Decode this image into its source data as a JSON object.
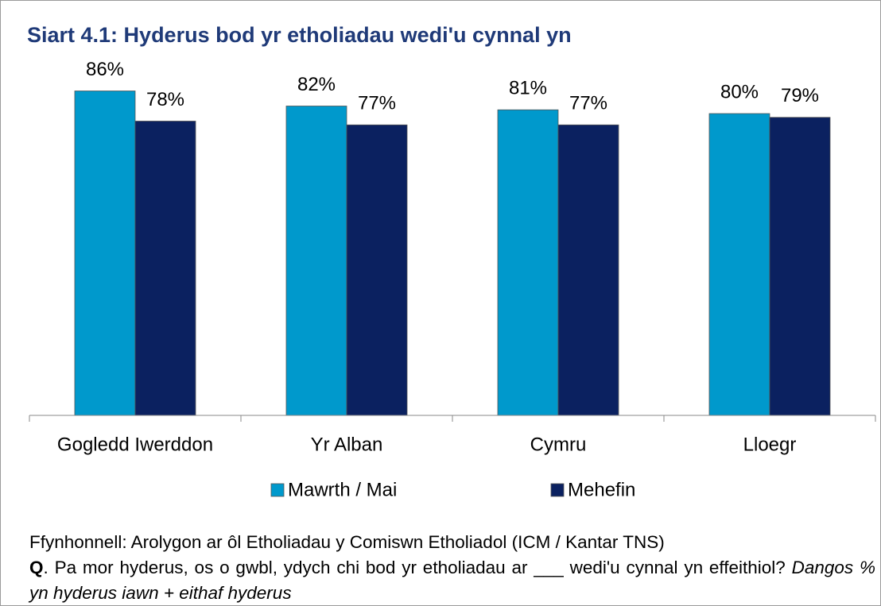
{
  "chart_data": {
    "type": "bar",
    "title": "Siart 4.1: Hyderus bod yr etholiadau wedi'u cynnal yn",
    "categories": [
      "Gogledd Iwerddon",
      "Yr Alban",
      "Cymru",
      "Lloegr"
    ],
    "series": [
      {
        "name": "Mawrth / Mai",
        "color": "#0099cc",
        "values": [
          86,
          82,
          81,
          80
        ],
        "value_labels": [
          "86%",
          "82%",
          "81%",
          "80%"
        ]
      },
      {
        "name": "Mehefin",
        "color": "#0b2160",
        "values": [
          78,
          77,
          77,
          79
        ],
        "value_labels": [
          "78%",
          "77%",
          "77%",
          "79%"
        ]
      }
    ],
    "ylim": [
      0,
      100
    ],
    "legend": "bottom"
  },
  "footnote": {
    "source": "Ffynhonnell:  Arolygon ar ôl Etholiadau  y Comiswn Etholiadol (ICM / Kantar TNS)",
    "question_label": "Q",
    "question": ".  Pa mor hyderus,  os o gwbl,  ydych chi bod yr etholiadau ar ___ wedi'u cynnal yn effeithiol?",
    "note": "Dangos % yn hyderus iawn + eithaf hyderus"
  }
}
